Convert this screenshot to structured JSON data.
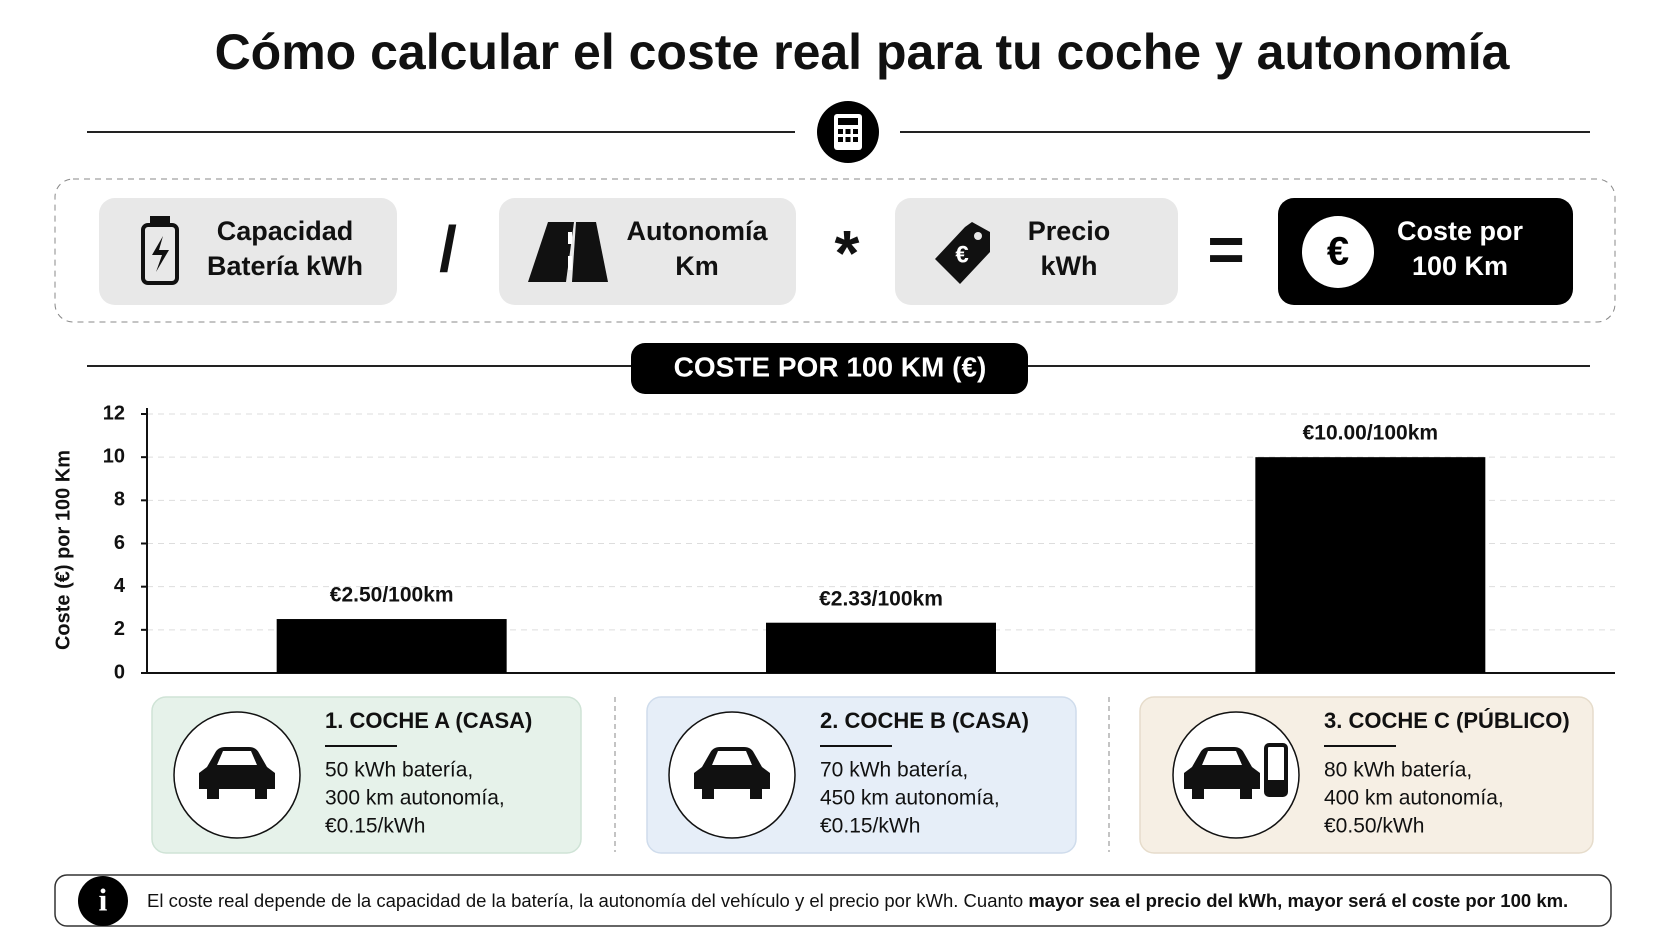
{
  "title": "Cómo calcular el coste real para tu coche y autonomía",
  "formula": {
    "terms": [
      [
        "Capacidad",
        "Batería kWh"
      ],
      [
        "Autonomía",
        "Km"
      ],
      [
        "Precio",
        "kWh"
      ]
    ],
    "operators": [
      "/",
      "*",
      "="
    ],
    "result": [
      "Coste por",
      "100 Km"
    ],
    "currency_symbol": "€"
  },
  "chart_data": {
    "type": "bar",
    "title": "COSTE POR 100 KM (€)",
    "y_label": "Coste (€) por 100 Km",
    "categories": [
      "1. COCHE A (CASA)",
      "2. COCHE B (CASA)",
      "3. COCHE C (PÚBLICO)"
    ],
    "values": [
      2.5,
      2.33,
      10
    ],
    "value_labels": [
      "€2.50/100km",
      "€2.33/100km",
      "€10.00/100km"
    ],
    "color": "#000000",
    "ylim": [
      0,
      12
    ],
    "yticks": [
      0,
      2,
      4,
      6,
      8,
      10,
      12
    ],
    "grid": true
  },
  "cards": [
    [
      "50 kWh batería,",
      "300 km autonomía,",
      "€0.15/kWh"
    ],
    [
      "70 kWh batería,",
      "450 km autonomía,",
      "€0.15/kWh"
    ],
    [
      "80 kWh batería,",
      "400 km autonomía,",
      "€0.50/kWh"
    ]
  ],
  "note": {
    "text": "El coste real depende de la capacidad de la batería, la autonomía del vehículo y el precio por kWh. Cuanto ",
    "emphasis": "mayor sea el precio del kWh, mayor será el coste por 100 km."
  }
}
